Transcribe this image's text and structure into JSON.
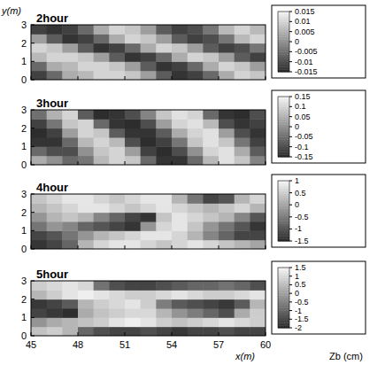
{
  "chart_data": [
    {
      "type": "heatmap",
      "title": "2hour",
      "y_label": "y(m)",
      "xlim": [
        45,
        60
      ],
      "ylim": [
        0,
        3
      ],
      "xticks": [
        45,
        48,
        51,
        54,
        57,
        60
      ],
      "yticks": [
        0,
        1,
        2,
        3
      ],
      "tick_labels": "y",
      "x_edges": [
        45,
        46,
        47,
        48,
        49,
        50,
        51,
        52,
        53,
        54,
        55,
        56,
        57,
        58,
        59,
        60
      ],
      "y_edges": [
        0,
        0.5,
        1,
        1.5,
        2,
        2.5,
        3
      ],
      "cells": [
        [
          -0.012,
          -0.006,
          0.004,
          0.006,
          0.01,
          0.01,
          0.008,
          0.002,
          -0.008,
          -0.014,
          -0.012,
          -0.006,
          0.004,
          0.01,
          0.008
        ],
        [
          -0.006,
          0.004,
          0.006,
          0.01,
          0.01,
          0.008,
          0.002,
          -0.008,
          -0.014,
          -0.012,
          -0.006,
          0.004,
          0.01,
          0.008,
          0.002
        ],
        [
          0.006,
          0.01,
          0.01,
          0.008,
          0.002,
          -0.008,
          -0.014,
          -0.012,
          -0.006,
          0.004,
          0.01,
          0.008,
          0.002,
          -0.008,
          -0.012
        ],
        [
          0.01,
          0.008,
          0.002,
          -0.008,
          -0.014,
          -0.012,
          -0.006,
          0.004,
          0.01,
          0.008,
          0.002,
          -0.008,
          -0.012,
          -0.01,
          -0.004
        ],
        [
          0.002,
          -0.008,
          -0.014,
          -0.012,
          -0.006,
          0.004,
          0.01,
          0.008,
          0.002,
          -0.008,
          -0.012,
          -0.01,
          -0.004,
          0.006,
          0.01
        ],
        [
          -0.012,
          -0.014,
          -0.012,
          -0.006,
          0.004,
          0.01,
          0.008,
          0.002,
          -0.008,
          -0.012,
          -0.01,
          -0.004,
          0.006,
          0.01,
          0.006
        ]
      ],
      "color_range": [
        -0.015,
        0.015
      ],
      "color_ticks": [
        0.015,
        0.01,
        0.005,
        0,
        -0.005,
        -0.01,
        -0.015
      ]
    },
    {
      "type": "heatmap",
      "title": "3hour",
      "xlim": [
        45,
        60
      ],
      "ylim": [
        0,
        3
      ],
      "xticks": [
        45,
        48,
        51,
        54,
        57,
        60
      ],
      "yticks": [
        0,
        1,
        2,
        3
      ],
      "tick_labels": "y",
      "x_edges": [
        45,
        46,
        47,
        48,
        49,
        50,
        51,
        52,
        53,
        54,
        55,
        56,
        57,
        58,
        59,
        60
      ],
      "y_edges": [
        0,
        0.5,
        1,
        1.5,
        2,
        2.5,
        3
      ],
      "cells": [
        [
          0.04,
          0.0,
          -0.06,
          -0.04,
          0.06,
          0.1,
          0.08,
          -0.06,
          -0.14,
          -0.14,
          -0.06,
          0.06,
          0.12,
          0.08,
          -0.02
        ],
        [
          -0.06,
          -0.1,
          -0.1,
          0.0,
          0.08,
          0.1,
          0.02,
          -0.12,
          -0.15,
          -0.1,
          0.0,
          0.1,
          0.12,
          0.04,
          -0.08
        ],
        [
          -0.14,
          -0.14,
          -0.06,
          0.06,
          0.1,
          0.06,
          -0.1,
          -0.15,
          -0.12,
          -0.04,
          0.08,
          0.12,
          0.08,
          -0.04,
          -0.12
        ],
        [
          -0.15,
          -0.12,
          0.02,
          0.1,
          0.08,
          -0.08,
          -0.14,
          -0.14,
          -0.08,
          0.04,
          0.1,
          0.12,
          0.02,
          -0.1,
          -0.14
        ],
        [
          -0.12,
          -0.04,
          0.08,
          0.1,
          -0.06,
          -0.14,
          -0.15,
          -0.1,
          0.02,
          0.1,
          0.12,
          0.06,
          -0.1,
          -0.14,
          -0.12
        ],
        [
          -0.05,
          0.05,
          0.1,
          -0.08,
          -0.15,
          -0.14,
          -0.1,
          -0.02,
          0.08,
          0.12,
          0.1,
          -0.06,
          -0.14,
          -0.15,
          -0.1
        ]
      ],
      "color_range": [
        -0.15,
        0.15
      ],
      "color_ticks": [
        0.15,
        0.1,
        0.05,
        0,
        -0.05,
        -0.1,
        -0.15
      ]
    },
    {
      "type": "heatmap",
      "title": "4hour",
      "xlim": [
        45,
        60
      ],
      "ylim": [
        0,
        3
      ],
      "xticks": [
        45,
        48,
        51,
        54,
        57,
        60
      ],
      "yticks": [
        0,
        1,
        2,
        3
      ],
      "tick_labels": "y",
      "x_edges": [
        45,
        46,
        47,
        48,
        49,
        50,
        51,
        52,
        53,
        54,
        55,
        56,
        57,
        58,
        59,
        60
      ],
      "y_edges": [
        0,
        0.5,
        1,
        1.5,
        2,
        2.5,
        3
      ],
      "cells": [
        [
          -1.4,
          -1.2,
          -0.8,
          0.2,
          0.6,
          0.8,
          0.8,
          0.6,
          0.4,
          0.6,
          0.8,
          0.6,
          0.4,
          0.2,
          0.0
        ],
        [
          -1.2,
          -1.0,
          -0.6,
          -0.2,
          0.2,
          0.4,
          0.6,
          0.8,
          0.8,
          0.6,
          0.2,
          -0.4,
          -0.8,
          -1.2,
          -1.2
        ],
        [
          -0.6,
          -0.2,
          -0.4,
          -0.8,
          -1.0,
          -1.2,
          -1.4,
          -0.2,
          0.6,
          0.8,
          0.4,
          -0.2,
          -0.6,
          -1.0,
          -1.4
        ],
        [
          -0.2,
          0.2,
          0.4,
          0.2,
          -0.4,
          -0.8,
          -1.2,
          -1.4,
          0.4,
          0.8,
          0.6,
          0.4,
          0.2,
          -0.4,
          -1.0
        ],
        [
          0.2,
          0.4,
          0.6,
          0.8,
          0.8,
          0.6,
          0.4,
          0.6,
          0.8,
          0.6,
          0.4,
          0.2,
          0.4,
          0.6,
          0.2
        ],
        [
          0.4,
          0.6,
          0.8,
          0.8,
          0.6,
          0.4,
          0.6,
          0.8,
          0.8,
          0.2,
          -0.6,
          -1.2,
          -1.0,
          0.2,
          0.6
        ]
      ],
      "color_range": [
        -1.5,
        1
      ],
      "color_ticks": [
        1,
        0.5,
        0,
        -0.5,
        -1,
        -1.5
      ]
    },
    {
      "type": "heatmap",
      "title": "5hour",
      "x_label": "x(m)",
      "colorbar_label": "Zb (cm)",
      "xlim": [
        45,
        60
      ],
      "ylim": [
        0,
        3
      ],
      "xticks": [
        45,
        48,
        51,
        54,
        57,
        60
      ],
      "yticks": [
        0,
        1,
        2,
        3
      ],
      "x_edges": [
        45,
        46,
        47,
        48,
        49,
        50,
        51,
        52,
        53,
        54,
        55,
        56,
        57,
        58,
        59,
        60
      ],
      "y_edges": [
        0,
        0.5,
        1,
        1.5,
        2,
        2.5,
        3
      ],
      "cells": [
        [
          0.6,
          0.8,
          0.4,
          -1.0,
          -1.4,
          -1.6,
          -1.6,
          -1.4,
          -1.6,
          -1.8,
          -1.6,
          -1.6,
          -1.4,
          -1.6,
          -1.6
        ],
        [
          -0.2,
          0.2,
          0.4,
          0.6,
          0.8,
          1.2,
          1.4,
          1.2,
          0.8,
          0.6,
          0.8,
          1.0,
          1.2,
          1.0,
          0.8
        ],
        [
          -1.6,
          -1.8,
          -2.0,
          0.2,
          0.6,
          0.8,
          1.0,
          1.0,
          0.4,
          -0.2,
          -0.6,
          -1.0,
          -1.4,
          0.2,
          0.8
        ],
        [
          -1.8,
          -1.6,
          -1.2,
          0.4,
          0.8,
          1.0,
          1.2,
          0.8,
          -0.6,
          -1.2,
          -1.4,
          -1.6,
          -1.8,
          -1.2,
          0.4
        ],
        [
          0.4,
          0.8,
          1.2,
          1.4,
          1.2,
          1.0,
          0.8,
          0.8,
          1.0,
          1.2,
          1.0,
          0.8,
          0.8,
          1.0,
          1.2
        ],
        [
          0.8,
          1.0,
          1.2,
          1.0,
          -0.8,
          -1.4,
          -1.6,
          -1.6,
          -1.4,
          -1.2,
          -1.0,
          -1.0,
          -0.8,
          -1.0,
          -1.4
        ]
      ],
      "color_range": [
        -2,
        1.5
      ],
      "color_ticks": [
        1.5,
        1,
        0.5,
        0,
        -0.5,
        -1,
        -1.5,
        -2
      ]
    }
  ]
}
